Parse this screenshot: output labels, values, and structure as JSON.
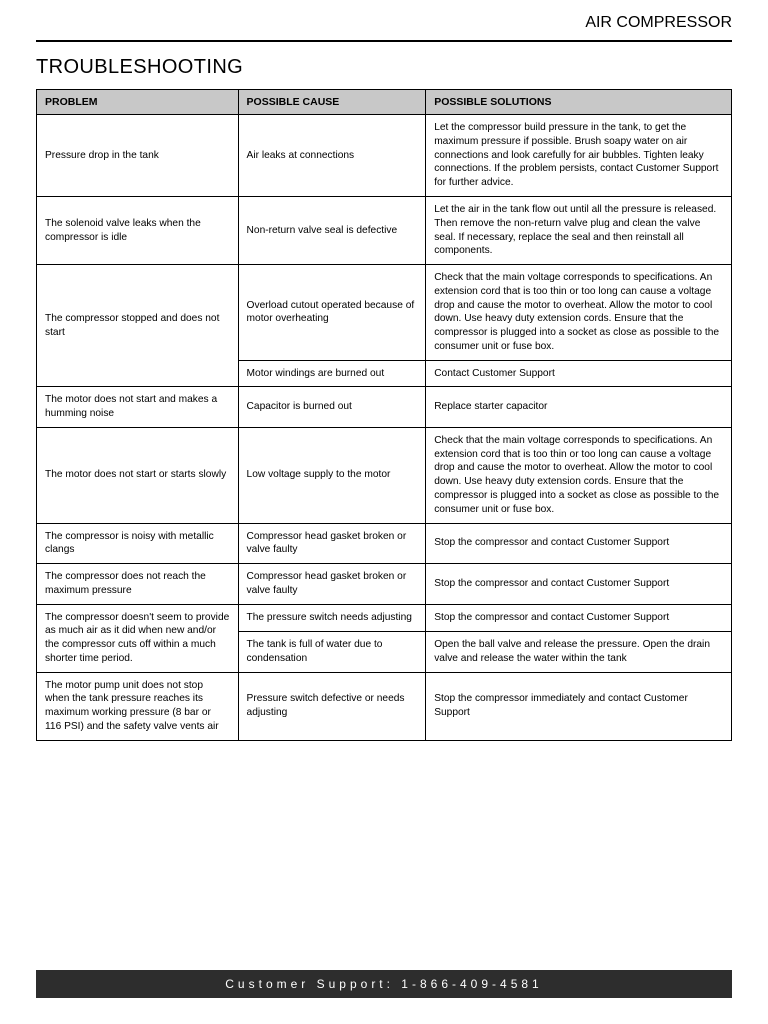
{
  "doc": {
    "header_title": "AIR COMPRESSOR",
    "section_title": "TROUBLESHOOTING",
    "footer_text": "Customer Support:  1-866-409-4581"
  },
  "style": {
    "page_bg": "#ffffff",
    "outer_bg": "#e5e5e5",
    "header_rule_color": "#000000",
    "th_bg": "#c8c8c8",
    "border_color": "#000000",
    "footer_bg": "#2d2d2d",
    "footer_fg": "#ffffff",
    "font_family": "Arial, Helvetica, sans-serif",
    "header_fontsize_pt": 13,
    "section_title_fontsize_pt": 15,
    "cell_fontsize_pt": 8,
    "col_widths_pct": [
      29,
      27,
      44
    ]
  },
  "table": {
    "columns": [
      "PROBLEM",
      "POSSIBLE CAUSE",
      "POSSIBLE SOLUTIONS"
    ],
    "rows": [
      {
        "problem": "Pressure drop in the tank",
        "cause": "Air leaks at connections",
        "solution": "Let the compressor build pressure in the tank, to get the maximum pressure if possible. Brush soapy water on air connections and look carefully for air bubbles. Tighten leaky connections. If the problem persists, contact Customer Support for further advice."
      },
      {
        "problem": "The solenoid valve leaks when the compressor is idle",
        "cause": "Non-return valve seal is defective",
        "solution": "Let the air in the tank flow out until all the pressure is released. Then remove the non-return valve plug and clean the valve seal. If necessary, replace the seal and then reinstall all components."
      },
      {
        "problem": "The compressor stopped and does not start",
        "problem_rowspan": 2,
        "cause": "Overload cutout operated because of motor overheating",
        "solution": "Check that the main voltage corresponds to specifications. An extension cord that is too thin or too long can cause a voltage drop and cause the motor to overheat. Allow the motor to cool down. Use heavy duty extension cords. Ensure that the compressor is plugged into a socket as close as possible to the consumer unit or fuse box."
      },
      {
        "problem": "",
        "problem_skip": true,
        "cause": "Motor windings are burned out",
        "solution": "Contact Customer Support"
      },
      {
        "problem": "The motor does not start and makes a humming noise",
        "cause": "Capacitor is burned out",
        "solution": "Replace starter capacitor"
      },
      {
        "problem": "The motor does not start or starts slowly",
        "cause": "Low voltage supply to the motor",
        "solution": "Check that the main voltage corresponds to specifications. An extension cord that is too thin or too long can cause a voltage drop and cause the motor to overheat. Allow the motor to cool down. Use heavy duty extension cords. Ensure that the compressor is plugged into a socket as close as possible to the consumer unit or fuse box."
      },
      {
        "problem": "The compressor is noisy with metallic clangs",
        "cause": "Compressor head gasket broken or valve faulty",
        "solution": "Stop the compressor and contact Customer Support"
      },
      {
        "problem": "The compressor does not reach the maximum pressure",
        "cause": "Compressor head gasket broken or valve faulty",
        "solution": "Stop the compressor and contact Customer Support"
      },
      {
        "problem": "The compressor doesn't seem to provide as much air as it did when new and/or the compressor cuts off within a much shorter time period.",
        "problem_rowspan": 2,
        "cause": "The pressure switch needs adjusting",
        "solution": "Stop the compressor and contact Customer Support"
      },
      {
        "problem": "",
        "problem_skip": true,
        "cause": "The tank is full of water due to condensation",
        "solution": "Open the ball valve and release the pressure. Open the drain valve and release the water within the tank"
      },
      {
        "problem": "The motor pump unit does not stop when the tank pressure reaches its maximum working pressure (8 bar or 116 PSI) and the safety valve vents air",
        "cause": "Pressure switch defective or needs adjusting",
        "solution": "Stop the compressor immediately and contact Customer Support"
      }
    ]
  }
}
